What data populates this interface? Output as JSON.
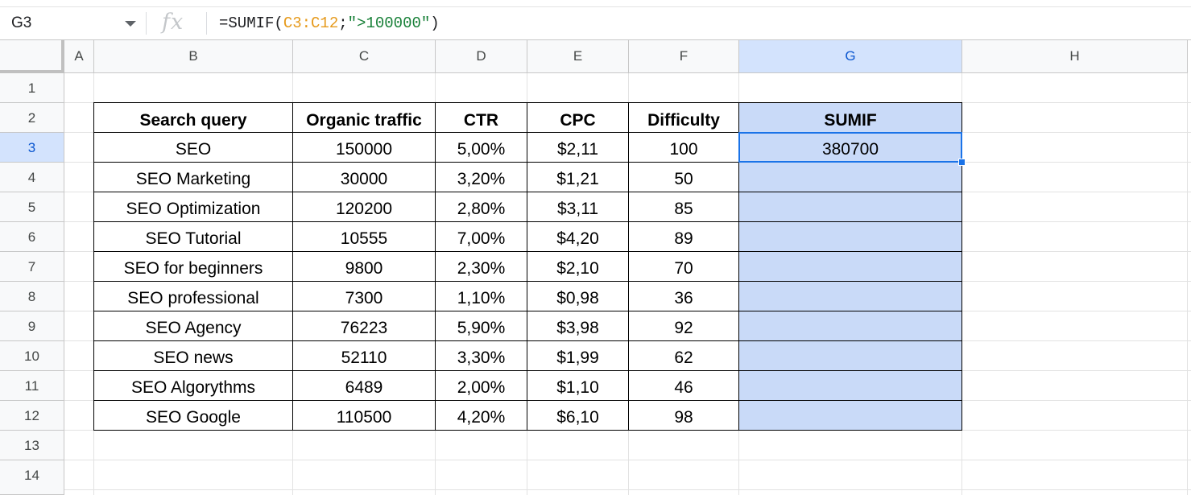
{
  "formula_bar": {
    "name_box": "G3",
    "fx_icon": "fx-icon",
    "formula_prefix": "=SUMIF(",
    "formula_ref": "C3:C12",
    "formula_sep": ";",
    "formula_string": "\">100000\"",
    "formula_suffix": ")"
  },
  "sheet": {
    "columns": [
      "A",
      "B",
      "C",
      "D",
      "E",
      "F",
      "G",
      "H"
    ],
    "rows": [
      "1",
      "2",
      "3",
      "4",
      "5",
      "6",
      "7",
      "8",
      "9",
      "10",
      "11",
      "12",
      "13",
      "14"
    ],
    "active_column": "G",
    "active_row": "3",
    "colors": {
      "highlight_fill": "#c9daf8",
      "selection_border": "#1a73e8",
      "active_header": "#d3e3fd"
    }
  },
  "table": {
    "headers": [
      "Search query",
      "Organic traffic",
      "CTR",
      "CPC",
      "Difficulty",
      "SUMIF"
    ],
    "rows": [
      [
        "SEO",
        "150000",
        "5,00%",
        "$2,11",
        "100",
        "380700"
      ],
      [
        "SEO Marketing",
        "30000",
        "3,20%",
        "$1,21",
        "50",
        ""
      ],
      [
        "SEO Optimization",
        "120200",
        "2,80%",
        "$3,11",
        "85",
        ""
      ],
      [
        "SEO Tutorial",
        "10555",
        "7,00%",
        "$4,20",
        "89",
        ""
      ],
      [
        "SEO for beginners",
        "9800",
        "2,30%",
        "$2,10",
        "70",
        ""
      ],
      [
        "SEO professional",
        "7300",
        "1,10%",
        "$0,98",
        "36",
        ""
      ],
      [
        "SEO Agency",
        "76223",
        "5,90%",
        "$3,98",
        "92",
        ""
      ],
      [
        "SEO news",
        "52110",
        "3,30%",
        "$1,99",
        "62",
        ""
      ],
      [
        "SEO Algorythms",
        "6489",
        "2,00%",
        "$1,10",
        "46",
        ""
      ],
      [
        "SEO Google",
        "110500",
        "4,20%",
        "$6,10",
        "98",
        ""
      ]
    ]
  }
}
